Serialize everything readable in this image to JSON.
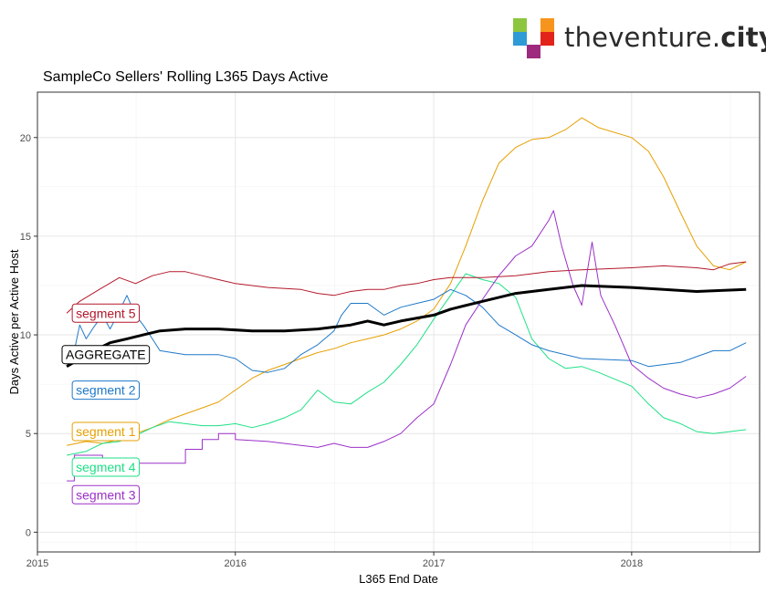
{
  "brand": {
    "name_light": "theventure.",
    "name_bold": "city",
    "colors": [
      "#8cc63f",
      "#2e9ad6",
      "#f7941d",
      "#e2231a",
      "#9e2a7d",
      "#5bc8d5"
    ]
  },
  "chart_data": {
    "type": "line",
    "title": "SampleCo Sellers' Rolling L365 Days Active",
    "xlabel": "L365 End Date",
    "ylabel": "Days Active per Active Host",
    "xlim": [
      "2015-01-01",
      "2018-08-25"
    ],
    "ylim": [
      -1,
      22.3
    ],
    "xticks": [
      {
        "label": "2015",
        "date": "2015-01-01"
      },
      {
        "label": "2016",
        "date": "2016-01-01"
      },
      {
        "label": "2017",
        "date": "2017-01-01"
      },
      {
        "label": "2018",
        "date": "2018-01-01"
      }
    ],
    "yticks": [
      0,
      5,
      10,
      15,
      20
    ],
    "grid": true,
    "series": [
      {
        "name": "segment 5",
        "color": "#b2182b",
        "stroke": 1,
        "label_anchor": {
          "date": "2015-05-07",
          "value": 11.1
        },
        "points": [
          [
            "2015-02-24",
            11.1
          ],
          [
            "2015-03-20",
            11.7
          ],
          [
            "2015-04-25",
            12.3
          ],
          [
            "2015-06-01",
            12.9
          ],
          [
            "2015-07-01",
            12.6
          ],
          [
            "2015-08-01",
            13.0
          ],
          [
            "2015-09-01",
            13.2
          ],
          [
            "2015-10-01",
            13.2
          ],
          [
            "2015-11-01",
            13.0
          ],
          [
            "2015-12-01",
            12.8
          ],
          [
            "2016-01-01",
            12.6
          ],
          [
            "2016-03-01",
            12.4
          ],
          [
            "2016-05-01",
            12.3
          ],
          [
            "2016-06-01",
            12.1
          ],
          [
            "2016-07-01",
            12.0
          ],
          [
            "2016-08-01",
            12.2
          ],
          [
            "2016-09-01",
            12.3
          ],
          [
            "2016-10-01",
            12.3
          ],
          [
            "2016-11-01",
            12.5
          ],
          [
            "2016-12-01",
            12.6
          ],
          [
            "2017-01-01",
            12.8
          ],
          [
            "2017-02-01",
            12.9
          ],
          [
            "2017-04-01",
            12.9
          ],
          [
            "2017-06-01",
            13.0
          ],
          [
            "2017-08-01",
            13.2
          ],
          [
            "2017-10-01",
            13.3
          ],
          [
            "2018-01-01",
            13.4
          ],
          [
            "2018-03-01",
            13.5
          ],
          [
            "2018-05-01",
            13.4
          ],
          [
            "2018-06-01",
            13.3
          ],
          [
            "2018-07-01",
            13.6
          ],
          [
            "2018-07-31",
            13.7
          ]
        ]
      },
      {
        "name": "AGGREGATE",
        "color": "#000000",
        "stroke": 3,
        "label_anchor": {
          "date": "2015-05-07",
          "value": 9.0
        },
        "points": [
          [
            "2015-02-24",
            8.4
          ],
          [
            "2015-03-15",
            8.7
          ],
          [
            "2015-04-15",
            9.2
          ],
          [
            "2015-05-15",
            9.6
          ],
          [
            "2015-06-15",
            9.8
          ],
          [
            "2015-07-15",
            10.0
          ],
          [
            "2015-08-15",
            10.2
          ],
          [
            "2015-10-01",
            10.3
          ],
          [
            "2015-12-01",
            10.3
          ],
          [
            "2016-02-01",
            10.2
          ],
          [
            "2016-04-01",
            10.2
          ],
          [
            "2016-06-01",
            10.3
          ],
          [
            "2016-08-01",
            10.5
          ],
          [
            "2016-09-01",
            10.7
          ],
          [
            "2016-10-01",
            10.5
          ],
          [
            "2016-11-01",
            10.7
          ],
          [
            "2017-01-01",
            11.0
          ],
          [
            "2017-02-01",
            11.3
          ],
          [
            "2017-04-01",
            11.7
          ],
          [
            "2017-06-01",
            12.1
          ],
          [
            "2017-08-01",
            12.3
          ],
          [
            "2017-10-01",
            12.5
          ],
          [
            "2018-01-01",
            12.4
          ],
          [
            "2018-03-01",
            12.3
          ],
          [
            "2018-05-01",
            12.2
          ],
          [
            "2018-07-31",
            12.3
          ]
        ]
      },
      {
        "name": "segment 2",
        "color": "#1f78c8",
        "stroke": 1,
        "label_anchor": {
          "date": "2015-05-07",
          "value": 7.2
        },
        "points": [
          [
            "2015-02-24",
            8.4
          ],
          [
            "2015-03-10",
            9.2
          ],
          [
            "2015-03-20",
            10.5
          ],
          [
            "2015-04-01",
            9.8
          ],
          [
            "2015-04-15",
            10.4
          ],
          [
            "2015-05-01",
            11.0
          ],
          [
            "2015-05-15",
            10.3
          ],
          [
            "2015-06-01",
            11.2
          ],
          [
            "2015-06-15",
            12.0
          ],
          [
            "2015-07-01",
            11.0
          ],
          [
            "2015-07-15",
            10.5
          ],
          [
            "2015-08-01",
            9.8
          ],
          [
            "2015-08-15",
            9.2
          ],
          [
            "2015-10-01",
            9.0
          ],
          [
            "2015-12-01",
            9.0
          ],
          [
            "2016-01-01",
            8.8
          ],
          [
            "2016-02-01",
            8.2
          ],
          [
            "2016-03-01",
            8.1
          ],
          [
            "2016-04-01",
            8.3
          ],
          [
            "2016-05-01",
            9.0
          ],
          [
            "2016-06-01",
            9.5
          ],
          [
            "2016-07-01",
            10.2
          ],
          [
            "2016-07-15",
            11.0
          ],
          [
            "2016-08-01",
            11.6
          ],
          [
            "2016-09-01",
            11.6
          ],
          [
            "2016-10-01",
            11.0
          ],
          [
            "2016-11-01",
            11.4
          ],
          [
            "2016-12-01",
            11.6
          ],
          [
            "2017-01-01",
            11.8
          ],
          [
            "2017-02-01",
            12.3
          ],
          [
            "2017-03-01",
            12.0
          ],
          [
            "2017-04-01",
            11.4
          ],
          [
            "2017-05-01",
            10.5
          ],
          [
            "2017-06-01",
            10.0
          ],
          [
            "2017-07-01",
            9.5
          ],
          [
            "2017-08-01",
            9.2
          ],
          [
            "2017-10-01",
            8.8
          ],
          [
            "2018-01-01",
            8.7
          ],
          [
            "2018-02-01",
            8.4
          ],
          [
            "2018-04-01",
            8.6
          ],
          [
            "2018-05-01",
            8.9
          ],
          [
            "2018-06-01",
            9.2
          ],
          [
            "2018-07-01",
            9.2
          ],
          [
            "2018-07-31",
            9.6
          ]
        ]
      },
      {
        "name": "segment 1",
        "color": "#e69f00",
        "stroke": 1,
        "label_anchor": {
          "date": "2015-05-07",
          "value": 5.1
        },
        "points": [
          [
            "2015-02-24",
            4.4
          ],
          [
            "2015-04-01",
            4.6
          ],
          [
            "2015-05-01",
            4.5
          ],
          [
            "2015-06-01",
            4.7
          ],
          [
            "2015-07-01",
            5.0
          ],
          [
            "2015-08-01",
            5.3
          ],
          [
            "2015-09-01",
            5.7
          ],
          [
            "2015-10-01",
            6.0
          ],
          [
            "2015-11-01",
            6.3
          ],
          [
            "2015-12-01",
            6.6
          ],
          [
            "2016-01-01",
            7.2
          ],
          [
            "2016-02-01",
            7.8
          ],
          [
            "2016-03-01",
            8.2
          ],
          [
            "2016-04-01",
            8.5
          ],
          [
            "2016-05-01",
            8.8
          ],
          [
            "2016-06-01",
            9.1
          ],
          [
            "2016-07-01",
            9.3
          ],
          [
            "2016-08-01",
            9.6
          ],
          [
            "2016-09-01",
            9.8
          ],
          [
            "2016-10-01",
            10.0
          ],
          [
            "2016-11-01",
            10.3
          ],
          [
            "2016-12-01",
            10.7
          ],
          [
            "2017-01-01",
            11.3
          ],
          [
            "2017-02-01",
            12.6
          ],
          [
            "2017-03-01",
            14.5
          ],
          [
            "2017-04-01",
            16.8
          ],
          [
            "2017-05-01",
            18.7
          ],
          [
            "2017-06-01",
            19.5
          ],
          [
            "2017-07-01",
            19.9
          ],
          [
            "2017-08-01",
            20.0
          ],
          [
            "2017-09-01",
            20.4
          ],
          [
            "2017-10-01",
            21.0
          ],
          [
            "2017-11-01",
            20.5
          ],
          [
            "2018-01-01",
            20.0
          ],
          [
            "2018-02-01",
            19.3
          ],
          [
            "2018-03-01",
            18.0
          ],
          [
            "2018-04-01",
            16.2
          ],
          [
            "2018-05-01",
            14.5
          ],
          [
            "2018-06-01",
            13.5
          ],
          [
            "2018-07-01",
            13.3
          ],
          [
            "2018-07-31",
            13.7
          ]
        ]
      },
      {
        "name": "segment 4",
        "color": "#1ee086",
        "stroke": 1,
        "label_anchor": {
          "date": "2015-05-07",
          "value": 3.3
        },
        "points": [
          [
            "2015-02-24",
            3.9
          ],
          [
            "2015-04-01",
            4.1
          ],
          [
            "2015-05-01",
            4.5
          ],
          [
            "2015-06-01",
            4.6
          ],
          [
            "2015-07-01",
            4.9
          ],
          [
            "2015-08-01",
            5.3
          ],
          [
            "2015-09-01",
            5.6
          ],
          [
            "2015-10-01",
            5.5
          ],
          [
            "2015-11-01",
            5.4
          ],
          [
            "2015-12-01",
            5.4
          ],
          [
            "2016-01-01",
            5.5
          ],
          [
            "2016-02-01",
            5.3
          ],
          [
            "2016-03-01",
            5.5
          ],
          [
            "2016-04-01",
            5.8
          ],
          [
            "2016-05-01",
            6.2
          ],
          [
            "2016-06-01",
            7.2
          ],
          [
            "2016-07-01",
            6.6
          ],
          [
            "2016-08-01",
            6.5
          ],
          [
            "2016-09-01",
            7.1
          ],
          [
            "2016-10-01",
            7.6
          ],
          [
            "2016-11-01",
            8.5
          ],
          [
            "2016-12-01",
            9.5
          ],
          [
            "2017-01-01",
            10.8
          ],
          [
            "2017-02-01",
            12.0
          ],
          [
            "2017-03-01",
            13.1
          ],
          [
            "2017-04-01",
            12.8
          ],
          [
            "2017-05-01",
            12.6
          ],
          [
            "2017-06-01",
            11.9
          ],
          [
            "2017-07-01",
            9.8
          ],
          [
            "2017-08-01",
            8.8
          ],
          [
            "2017-09-01",
            8.3
          ],
          [
            "2017-10-01",
            8.4
          ],
          [
            "2017-11-01",
            8.1
          ],
          [
            "2018-01-01",
            7.4
          ],
          [
            "2018-02-01",
            6.5
          ],
          [
            "2018-03-01",
            5.8
          ],
          [
            "2018-04-01",
            5.5
          ],
          [
            "2018-05-01",
            5.1
          ],
          [
            "2018-06-01",
            5.0
          ],
          [
            "2018-07-01",
            5.1
          ],
          [
            "2018-07-31",
            5.2
          ]
        ]
      },
      {
        "name": "segment 3",
        "color": "#9b30c8",
        "stroke": 1,
        "label_anchor": {
          "date": "2015-05-07",
          "value": 1.9
        },
        "points": [
          [
            "2015-02-24",
            2.6
          ],
          [
            "2015-03-10",
            2.6
          ],
          [
            "2015-03-10",
            3.9
          ],
          [
            "2015-05-01",
            3.9
          ],
          [
            "2015-05-01",
            3.6
          ],
          [
            "2015-07-01",
            3.6
          ],
          [
            "2015-07-01",
            3.5
          ],
          [
            "2015-10-01",
            3.5
          ],
          [
            "2015-10-01",
            4.2
          ],
          [
            "2015-11-01",
            4.2
          ],
          [
            "2015-11-01",
            4.7
          ],
          [
            "2015-12-01",
            4.7
          ],
          [
            "2015-12-01",
            5.0
          ],
          [
            "2016-01-01",
            5.0
          ],
          [
            "2016-01-01",
            4.7
          ],
          [
            "2016-03-01",
            4.6
          ],
          [
            "2016-05-01",
            4.4
          ],
          [
            "2016-06-01",
            4.3
          ],
          [
            "2016-07-01",
            4.5
          ],
          [
            "2016-08-01",
            4.3
          ],
          [
            "2016-09-01",
            4.3
          ],
          [
            "2016-10-01",
            4.6
          ],
          [
            "2016-11-01",
            5.0
          ],
          [
            "2016-12-01",
            5.8
          ],
          [
            "2017-01-01",
            6.5
          ],
          [
            "2017-02-01",
            8.5
          ],
          [
            "2017-03-01",
            10.5
          ],
          [
            "2017-04-01",
            11.8
          ],
          [
            "2017-05-01",
            13.0
          ],
          [
            "2017-06-01",
            14.0
          ],
          [
            "2017-07-01",
            14.5
          ],
          [
            "2017-08-01",
            15.8
          ],
          [
            "2017-08-10",
            16.3
          ],
          [
            "2017-08-25",
            14.5
          ],
          [
            "2017-09-15",
            12.5
          ],
          [
            "2017-10-01",
            11.5
          ],
          [
            "2017-10-20",
            14.7
          ],
          [
            "2017-11-05",
            12.0
          ],
          [
            "2017-12-01",
            10.5
          ],
          [
            "2018-01-01",
            8.5
          ],
          [
            "2018-02-01",
            7.8
          ],
          [
            "2018-03-01",
            7.3
          ],
          [
            "2018-04-01",
            7.0
          ],
          [
            "2018-05-01",
            6.8
          ],
          [
            "2018-06-01",
            7.0
          ],
          [
            "2018-07-01",
            7.3
          ],
          [
            "2018-07-31",
            7.9
          ]
        ]
      }
    ]
  }
}
